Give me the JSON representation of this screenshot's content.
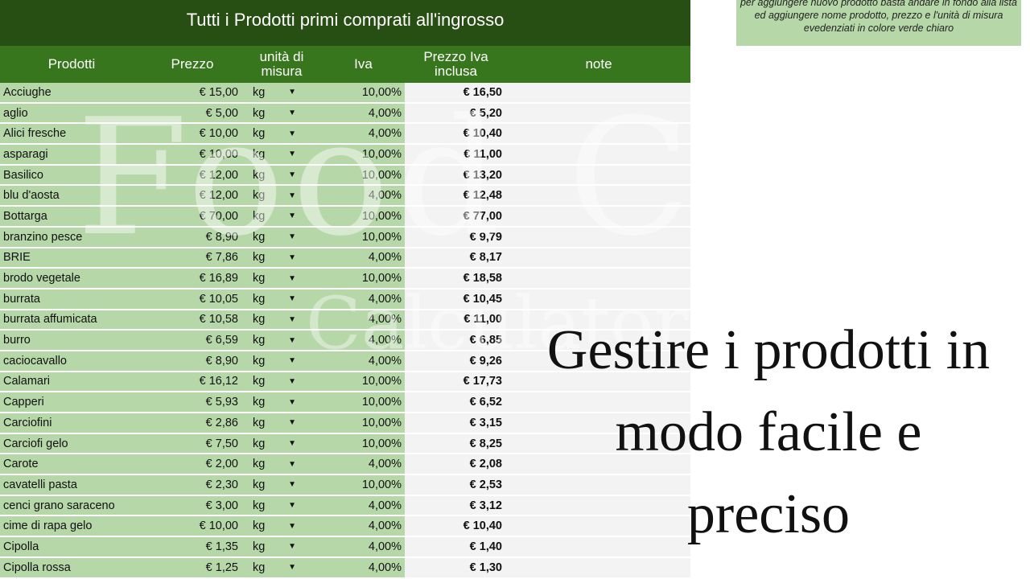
{
  "title": "Tutti i Prodotti primi comprati all'ingrosso",
  "note": "per aggiungere nuovo prodotto basta andare in fondo alla lista ed aggiungere nome prodotto, prezzo e l'unità di misura evedenziati in colore verde chiaro",
  "headers": {
    "prodotti": "Prodotti",
    "prezzo": "Prezzo",
    "unita": "unità di misura",
    "iva": "Iva",
    "prezzo_iva": "Prezzo Iva inclusa",
    "note": "note"
  },
  "watermark": "Food Cost Calculator",
  "headline": "Gestire i prodotti in modo facile e preciso",
  "colors": {
    "title_bg": "#274e13",
    "header_bg": "#38761d",
    "cell_light_green": "#b6d7a8"
  },
  "rows": [
    [
      "Acciughe",
      "€ 15,00",
      "kg",
      "10,00%",
      "€ 16,50"
    ],
    [
      "aglio",
      "€ 5,00",
      "kg",
      "4,00%",
      "€ 5,20"
    ],
    [
      "Alici fresche",
      "€ 10,00",
      "kg",
      "4,00%",
      "€ 10,40"
    ],
    [
      "asparagi",
      "€ 10,00",
      "kg",
      "10,00%",
      "€ 11,00"
    ],
    [
      "Basilico",
      "€ 12,00",
      "kg",
      "10,00%",
      "€ 13,20"
    ],
    [
      "blu d'aosta",
      "€ 12,00",
      "kg",
      "4,00%",
      "€ 12,48"
    ],
    [
      "Bottarga",
      "€ 70,00",
      "kg",
      "10,00%",
      "€ 77,00"
    ],
    [
      "branzino pesce",
      "€ 8,90",
      "kg",
      "10,00%",
      "€ 9,79"
    ],
    [
      "BRIE",
      "€ 7,86",
      "kg",
      "4,00%",
      "€ 8,17"
    ],
    [
      "brodo vegetale",
      "€ 16,89",
      "kg",
      "10,00%",
      "€ 18,58"
    ],
    [
      "burrata",
      "€ 10,05",
      "kg",
      "4,00%",
      "€ 10,45"
    ],
    [
      "burrata affumicata",
      "€ 10,58",
      "kg",
      "4,00%",
      "€ 11,00"
    ],
    [
      "burro",
      "€ 6,59",
      "kg",
      "4,00%",
      "€ 6,85"
    ],
    [
      "caciocavallo",
      "€ 8,90",
      "kg",
      "4,00%",
      "€ 9,26"
    ],
    [
      "Calamari",
      "€ 16,12",
      "kg",
      "10,00%",
      "€ 17,73"
    ],
    [
      "Capperi",
      "€ 5,93",
      "kg",
      "10,00%",
      "€ 6,52"
    ],
    [
      "Carciofini",
      "€ 2,86",
      "kg",
      "10,00%",
      "€ 3,15"
    ],
    [
      "Carciofi gelo",
      "€ 7,50",
      "kg",
      "10,00%",
      "€ 8,25"
    ],
    [
      "Carote",
      "€ 2,00",
      "kg",
      "4,00%",
      "€ 2,08"
    ],
    [
      "cavatelli pasta",
      "€ 2,30",
      "kg",
      "10,00%",
      "€ 2,53"
    ],
    [
      "cenci grano saraceno",
      "€ 3,00",
      "kg",
      "4,00%",
      "€ 3,12"
    ],
    [
      "cime di rapa gelo",
      "€ 10,00",
      "kg",
      "4,00%",
      "€ 10,40"
    ],
    [
      "Cipolla",
      "€ 1,35",
      "kg",
      "4,00%",
      "€ 1,40"
    ],
    [
      "Cipolla rossa",
      "€ 1,25",
      "kg",
      "4,00%",
      "€ 1,30"
    ]
  ]
}
